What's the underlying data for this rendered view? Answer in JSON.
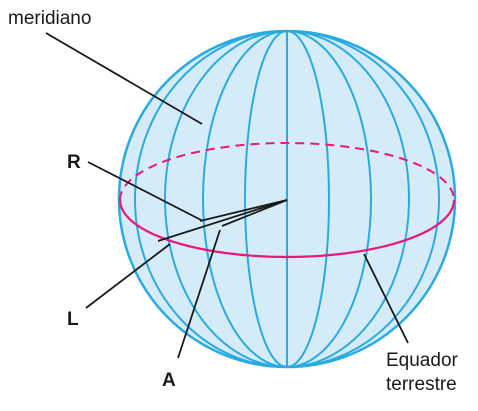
{
  "labels": {
    "meridian": "meridiano",
    "r": "R",
    "l": "L",
    "a": "A",
    "equator": [
      "Equador",
      "terrestre"
    ]
  }
}
